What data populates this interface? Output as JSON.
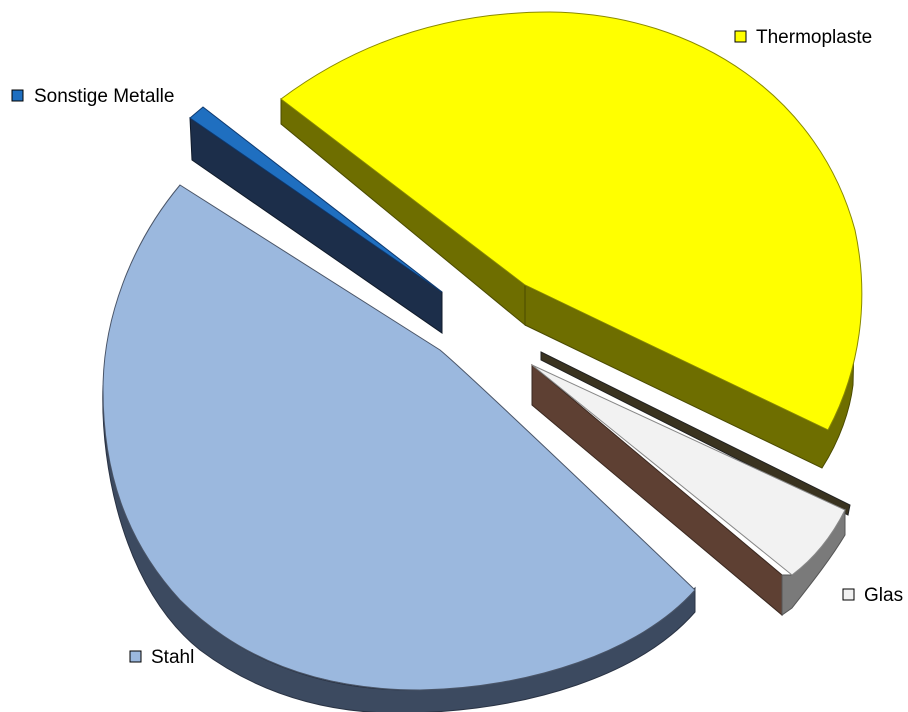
{
  "chart_data": {
    "type": "pie",
    "style": "3d-exploded",
    "title": "",
    "legend": "labels beside slices",
    "slices": [
      {
        "label": "Thermoplaste",
        "value": 42.5,
        "color": "#FFFF00",
        "side_color": "#6E6E00"
      },
      {
        "label": "Glas",
        "value": 5.0,
        "color": "#F2F2F2",
        "side_color": "#7A7A7A"
      },
      {
        "label": "Stahl",
        "value": 50.5,
        "color": "#9BB8DE",
        "side_color": "#3C4A60"
      },
      {
        "label": "Sonstige Metalle",
        "value": 0.6,
        "color": "#1F6FC0",
        "side_color": "#1C2E4A"
      }
    ]
  }
}
